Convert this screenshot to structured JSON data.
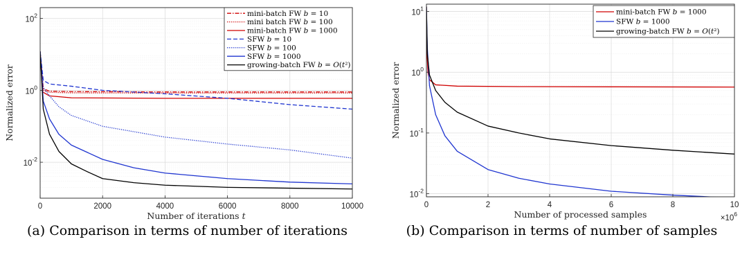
{
  "chart_data": [
    {
      "type": "line",
      "caption": "(a) Comparison in terms of number of iterations",
      "xlabel": "Number of iterations t",
      "ylabel": "Normalized error",
      "xlim": [
        0,
        10000
      ],
      "ylim_log10": [
        -3,
        2.3
      ],
      "yscale": "log",
      "grid": true,
      "legend_position": "top-right",
      "x_ticks": [
        0,
        2000,
        4000,
        6000,
        8000,
        10000
      ],
      "x_tick_labels": [
        "0",
        "2000",
        "4000",
        "6000",
        "8000",
        "10000"
      ],
      "y_ticks_log10": [
        -2,
        0,
        2
      ],
      "y_tick_labels": [
        {
          "base": "10",
          "exp": "-2"
        },
        {
          "base": "10",
          "exp": "0"
        },
        {
          "base": "10",
          "exp": "2"
        }
      ],
      "series": [
        {
          "name": "mini-batch FW b = 10",
          "color": "#d00000",
          "dash": "6 2 1.5 2",
          "points": [
            [
              0,
              12
            ],
            [
              100,
              1.1
            ],
            [
              300,
              0.95
            ],
            [
              1000,
              0.92
            ],
            [
              4000,
              0.9
            ],
            [
              10000,
              0.9
            ]
          ]
        },
        {
          "name": "mini batch FW b = 100",
          "color": "#d00000",
          "dash": "1.2 1.6",
          "points": [
            [
              0,
              12
            ],
            [
              100,
              1.0
            ],
            [
              300,
              0.88
            ],
            [
              1000,
              0.85
            ],
            [
              4000,
              0.84
            ],
            [
              10000,
              0.84
            ]
          ]
        },
        {
          "name": "mini-batch FW b = 1000",
          "color": "#d00000",
          "dash": "",
          "points": [
            [
              0,
              12
            ],
            [
              80,
              0.9
            ],
            [
              300,
              0.7
            ],
            [
              1000,
              0.62
            ],
            [
              4000,
              0.6
            ],
            [
              10000,
              0.6
            ]
          ]
        },
        {
          "name": "SFW b = 10",
          "color": "#1f35d0",
          "dash": "6 3",
          "points": [
            [
              0,
              12
            ],
            [
              100,
              1.9
            ],
            [
              300,
              1.5
            ],
            [
              1000,
              1.3
            ],
            [
              2000,
              1.0
            ],
            [
              4000,
              0.8
            ],
            [
              6000,
              0.6
            ],
            [
              8000,
              0.4
            ],
            [
              10000,
              0.3
            ]
          ]
        },
        {
          "name": "SFW b = 100",
          "color": "#1f35d0",
          "dash": "1.2 1.6",
          "points": [
            [
              0,
              12
            ],
            [
              100,
              1.2
            ],
            [
              300,
              0.7
            ],
            [
              600,
              0.35
            ],
            [
              1000,
              0.2
            ],
            [
              2000,
              0.1
            ],
            [
              4000,
              0.05
            ],
            [
              6000,
              0.032
            ],
            [
              8000,
              0.022
            ],
            [
              10000,
              0.013
            ]
          ]
        },
        {
          "name": "SFW b = 1000",
          "color": "#1f35d0",
          "dash": "",
          "points": [
            [
              0,
              12
            ],
            [
              100,
              0.5
            ],
            [
              300,
              0.16
            ],
            [
              600,
              0.06
            ],
            [
              1000,
              0.03
            ],
            [
              2000,
              0.012
            ],
            [
              3000,
              0.007
            ],
            [
              4000,
              0.005
            ],
            [
              6000,
              0.0035
            ],
            [
              8000,
              0.0028
            ],
            [
              10000,
              0.0025
            ]
          ]
        },
        {
          "name": "growing-batch FW b = O(t²)",
          "color": "#000000",
          "dash": "",
          "points": [
            [
              0,
              12
            ],
            [
              100,
              0.3
            ],
            [
              300,
              0.06
            ],
            [
              600,
              0.02
            ],
            [
              1000,
              0.009
            ],
            [
              1500,
              0.0055
            ],
            [
              2000,
              0.0035
            ],
            [
              3000,
              0.0027
            ],
            [
              4000,
              0.0023
            ],
            [
              6000,
              0.002
            ],
            [
              8000,
              0.0019
            ],
            [
              10000,
              0.0018
            ]
          ]
        }
      ]
    },
    {
      "type": "line",
      "caption": "(b) Comparison in terms of number of samples",
      "xlabel": "Number of processed samples",
      "ylabel": "Normalized error",
      "x_multiplier": {
        "base": "×10",
        "exp": "6"
      },
      "xlim": [
        0,
        10
      ],
      "ylim_log10": [
        -2.05,
        1.12
      ],
      "yscale": "log",
      "grid": true,
      "legend_position": "top-right",
      "x_ticks": [
        0,
        2,
        4,
        6,
        8,
        10
      ],
      "x_tick_labels": [
        "0",
        "2",
        "4",
        "6",
        "8",
        "10"
      ],
      "y_ticks_log10": [
        -2,
        -1,
        0,
        1
      ],
      "y_tick_labels": [
        {
          "base": "10",
          "exp": "-2"
        },
        {
          "base": "10",
          "exp": "-1"
        },
        {
          "base": "10",
          "exp": "0"
        },
        {
          "base": "10",
          "exp": "1"
        }
      ],
      "series": [
        {
          "name": "mini-batch FW b = 1000",
          "color": "#d00000",
          "dash": "",
          "points": [
            [
              0,
              12
            ],
            [
              0.02,
              2.0
            ],
            [
              0.05,
              1.0
            ],
            [
              0.1,
              0.75
            ],
            [
              0.3,
              0.62
            ],
            [
              1,
              0.59
            ],
            [
              3,
              0.58
            ],
            [
              6,
              0.575
            ],
            [
              10,
              0.57
            ]
          ]
        },
        {
          "name": "SFW b = 1000",
          "color": "#1f35d0",
          "dash": "",
          "points": [
            [
              0,
              12
            ],
            [
              0.03,
              2.5
            ],
            [
              0.1,
              0.6
            ],
            [
              0.3,
              0.2
            ],
            [
              0.6,
              0.09
            ],
            [
              1,
              0.05
            ],
            [
              2,
              0.025
            ],
            [
              3,
              0.018
            ],
            [
              4,
              0.0145
            ],
            [
              6,
              0.011
            ],
            [
              8,
              0.0095
            ],
            [
              10,
              0.0085
            ]
          ]
        },
        {
          "name": "growing-batch FW b = O(t²)",
          "color": "#000000",
          "dash": "",
          "points": [
            [
              0,
              12
            ],
            [
              0.03,
              2.0
            ],
            [
              0.1,
              0.9
            ],
            [
              0.3,
              0.5
            ],
            [
              0.6,
              0.32
            ],
            [
              1,
              0.22
            ],
            [
              2,
              0.13
            ],
            [
              3,
              0.1
            ],
            [
              4,
              0.08
            ],
            [
              6,
              0.062
            ],
            [
              8,
              0.052
            ],
            [
              10,
              0.045
            ]
          ]
        }
      ]
    }
  ]
}
